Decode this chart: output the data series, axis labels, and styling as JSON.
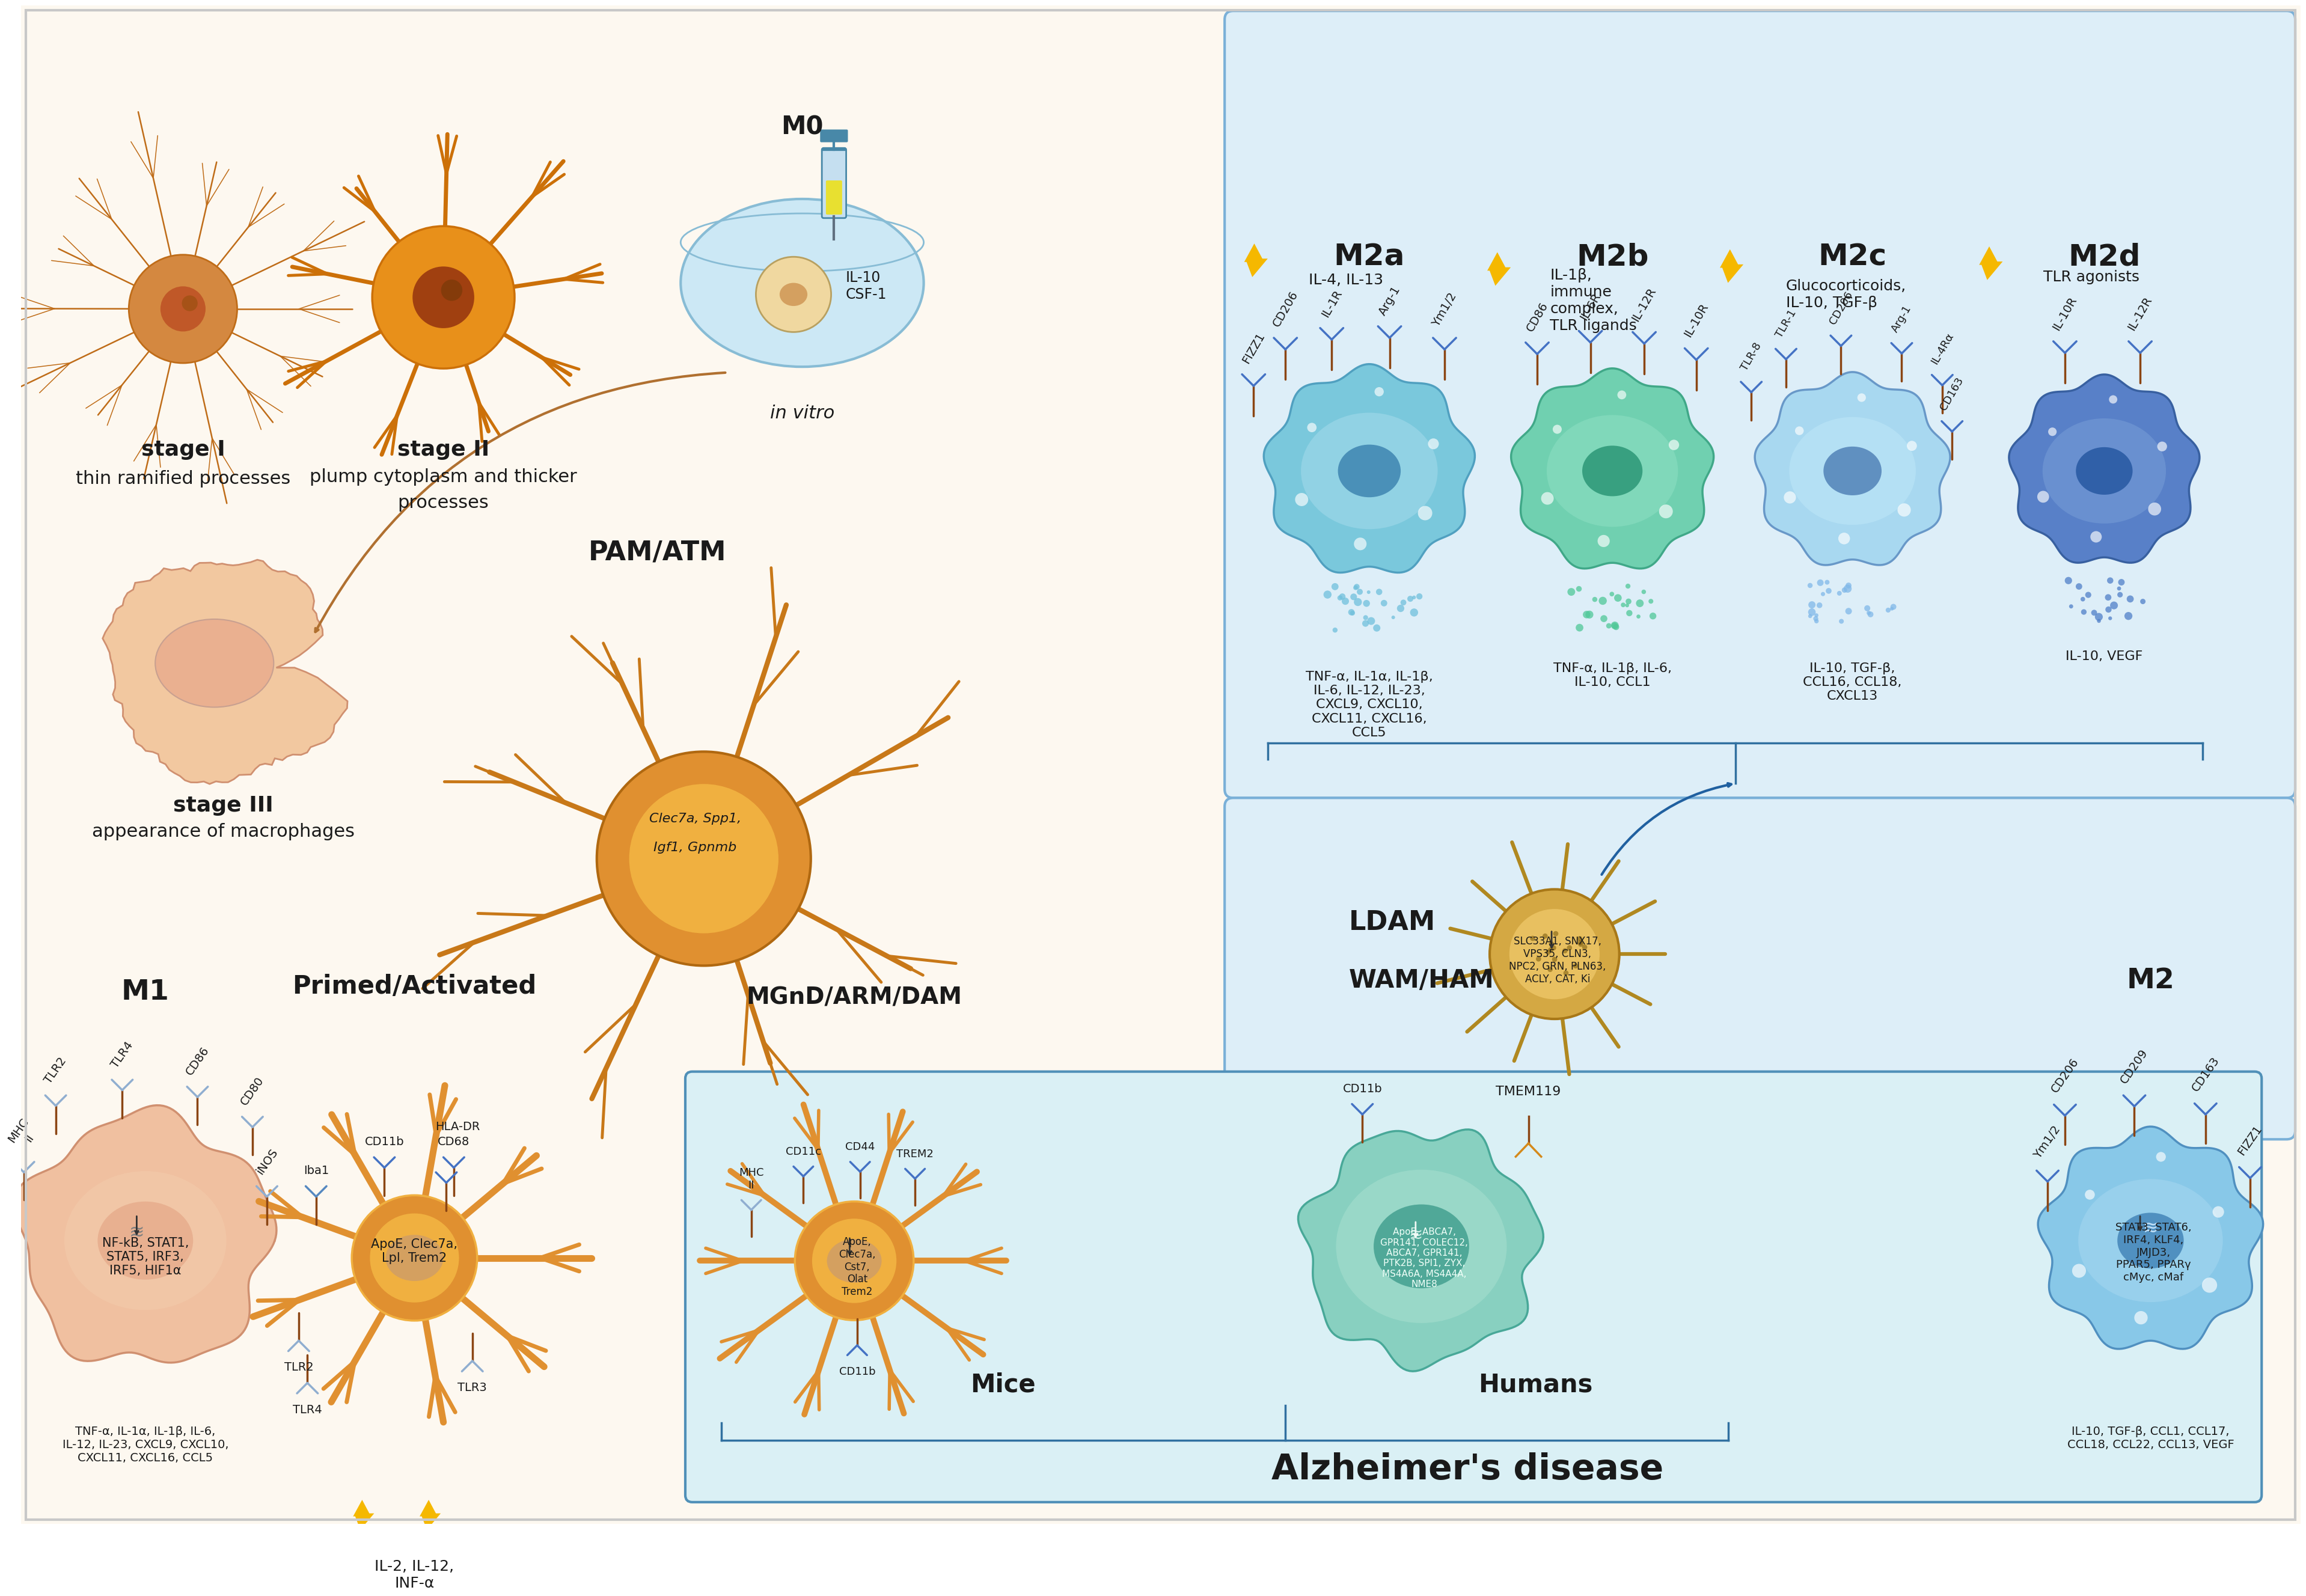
{
  "bg_color": "#fdf8f0",
  "right_panel_bg": "#ddeef8",
  "bottom_panel_bg": "#ddf0f5",
  "text_color": "#1a1a1a",
  "orange_dark": "#c07010",
  "orange_mid": "#e89030",
  "orange_light": "#f0b840",
  "teal_dark": "#3090a0",
  "teal_mid": "#60b8c8",
  "teal_light": "#90d4dc",
  "green_dark": "#30a080",
  "green_mid": "#50c0a0",
  "green_light": "#80d8c0",
  "blue_dark": "#2060a0",
  "blue_mid": "#4090c8",
  "blue_light": "#90c4e8",
  "peach_dark": "#d09070",
  "peach_mid": "#e8b090",
  "peach_light": "#f5d0b0",
  "ldam_dark": "#a07010",
  "ldam_mid": "#c09020",
  "ldam_light": "#e0c050",
  "lightning_color": "#f5b800",
  "receptor_stem": "#8B4513",
  "receptor_blue": "#4472c4",
  "receptor_light": "#90aed0",
  "stage1_bold": "stage I",
  "stage1_text": "thin ramified processes",
  "stage2_bold": "stage II",
  "stage2_text1": "plump cytoplasm and thicker",
  "stage2_text2": "processes",
  "stage3_bold": "stage III",
  "stage3_text": "appearance of macrophages",
  "m0_label": "M0",
  "m0_sub": "IL-10\nCSF-1",
  "in_vitro": "in vitro",
  "pam_atm": "PAM/ATM",
  "pam_gene1": "Clec7a, Spp1,",
  "pam_gene2": "Igf1, Gpnmb",
  "m2a_title": "M2a",
  "m2b_title": "M2b",
  "m2c_title": "M2c",
  "m2d_title": "M2d",
  "m2a_stim": "IL-4, IL-13",
  "m2b_stim": "IL-1β,\nimmune\ncomplex,\nTLR ligands",
  "m2c_stim": "Glucocorticoids,\nIL-10, TGF-β",
  "m2d_stim": "TLR agonists",
  "m2a_cytokines": "TNF-α, IL-1α, IL-1β,\nIL-6, IL-12, IL-23,\nCXCL9, CXCL10,\nCXCL11, CXCL16,\nCCL5",
  "m2b_cytokines": "TNF-α, IL-1β, IL-6,\nIL-10, CCL1",
  "m2c_cytokines": "IL-10, TGF-β,\nCCL16, CCL18,\nCXCL13",
  "m2d_cytokines": "IL-10, VEGF",
  "ldam_title": "LDAM",
  "ldam_genes": "SLC33A1, SNX17,\nVPS35, CLN3,\nNPC2, GRN, PLN63,\nACLY, CAT, Ki",
  "m1_title": "M1",
  "m1_genes": "NF-kB, STAT1,\nSTAT5, IRF3,\nIRF5, HIF1α",
  "m1_cytokines": "TNF-α, IL-1α, IL-1β, IL-6,\nIL-12, IL-23, CXCL9, CXCL10,\nCXCL11, CXCL16, CCL5",
  "primed_title": "Primed/Activated",
  "primed_genes": "ApoE, Clec7a,\nLpl, Trem2",
  "primed_cytokines": "IL-2, IL-12,\nINF-α",
  "mgndam_title": "MGnD/ARM/DAM",
  "mgndam_genes": "ApoE,\nClec7a,\nCst7,\nOlat\nTrem2",
  "wam_title": "WAM/HAM",
  "wam_marker": "TMEM119",
  "wam_genes": "ApoE, ABCA7,\nGPR141, COLEC12,\nABCA7, GPR141,\nPTK2B, SPI1, ZYX,\nMS4A6A, MS4A4A,\nNME8",
  "m2_title": "M2",
  "m2_genes": "STAT3, STAT6,\nIRF4, KLF4,\nJMJD3,\nPPAR5, PPARγ\ncMyc, cMaf",
  "m2_cytokines": "IL-10, TGF-β, CCL1, CCL17,\nCCL18, CCL22, CCL13, VEGF",
  "mice_label": "Mice",
  "humans_label": "Humans",
  "ad_label": "Alzheimer's disease"
}
